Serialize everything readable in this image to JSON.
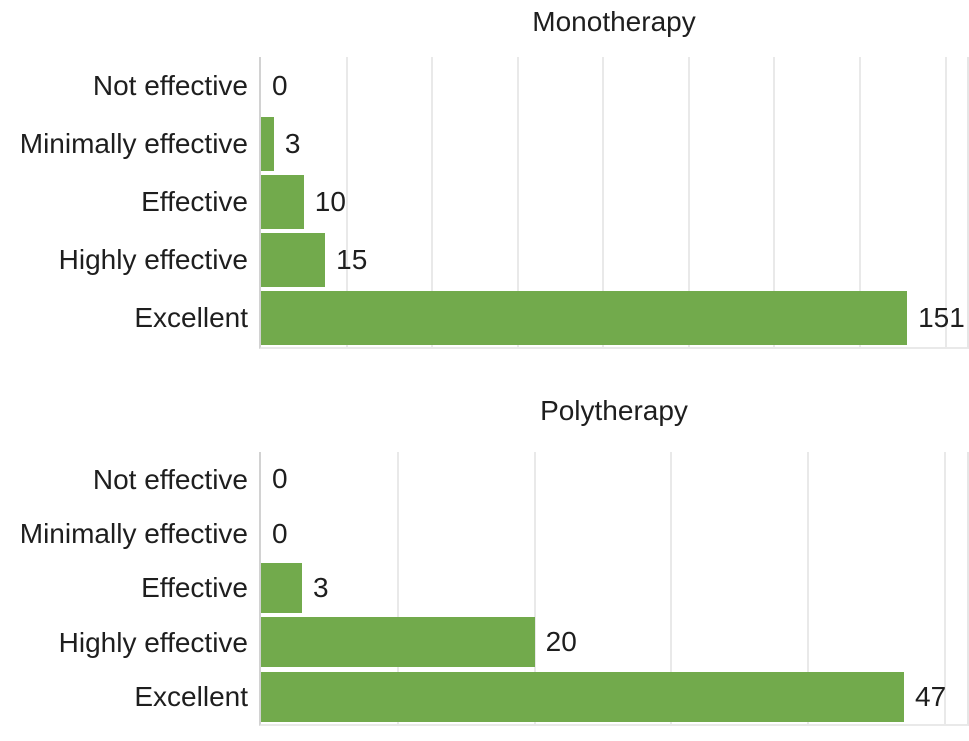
{
  "figure": {
    "background": "#ffffff",
    "text_color": "#1e1e1e",
    "bar_color": "#72aa4c",
    "gridline_color": "#e9e9e9",
    "axis_line_color": "#d2d2d2"
  },
  "chart_data": [
    {
      "type": "bar",
      "orientation": "horizontal",
      "title": "Monotherapy",
      "categories": [
        "Not effective",
        "Minimally effective",
        "Effective",
        "Highly effective",
        "Excellent"
      ],
      "values": [
        0,
        3,
        10,
        15,
        151
      ],
      "data_labels": [
        0,
        3,
        10,
        15,
        151
      ],
      "xlim": [
        0,
        165
      ],
      "grid_step": 20,
      "grid": "vertical-only",
      "legend": "none",
      "axis_tick_labels": "none"
    },
    {
      "type": "bar",
      "orientation": "horizontal",
      "title": "Polytherapy",
      "categories": [
        "Not effective",
        "Minimally effective",
        "Effective",
        "Highly effective",
        "Excellent"
      ],
      "values": [
        0,
        0,
        3,
        20,
        47
      ],
      "data_labels": [
        0,
        0,
        3,
        20,
        47
      ],
      "xlim": [
        0,
        51.6
      ],
      "grid_step": 10,
      "grid": "vertical-only",
      "legend": "none",
      "axis_tick_labels": "none"
    }
  ]
}
